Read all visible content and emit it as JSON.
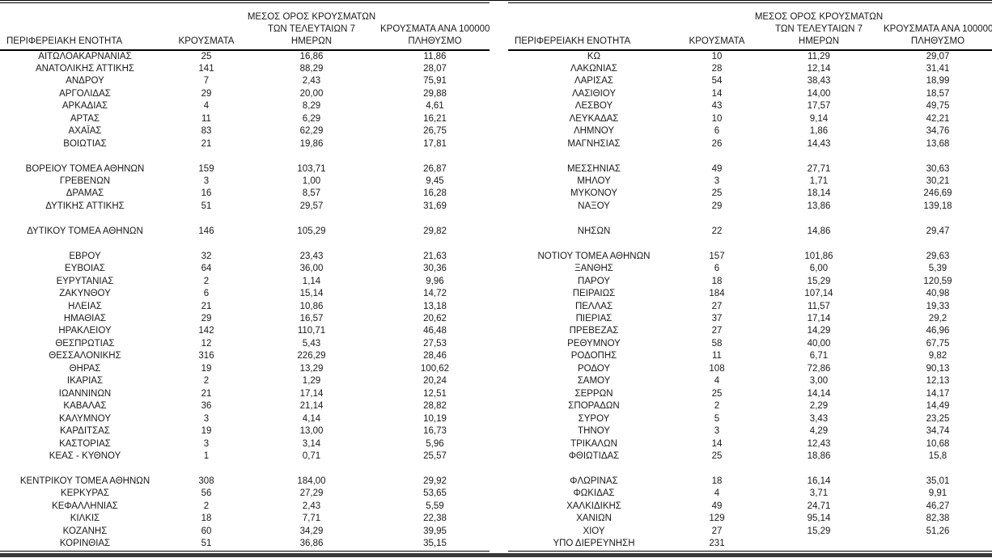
{
  "columns": {
    "region": "ΠΕΡΙΦΕΡΕΙΑΚΗ ΕΝΟΤΗΤΑ",
    "cases": "ΚΡΟΥΣΜΑΤΑ",
    "avg7": "ΜΕΣΟΣ ΟΡΟΣ ΚΡΟΥΣΜΑΤΩΝ\nΤΩΝ ΤΕΛΕΥΤΑΙΩΝ 7\nΗΜΕΡΩΝ",
    "per100k": "ΚΡΟΥΣΜΑΤΑ ΑΝΑ 100000\nΠΛΗΘΥΣΜΟ"
  },
  "colors": {
    "text": "#1a1a1a",
    "rule": "#000000",
    "bottom_bar": "#383838",
    "background": "#ffffff"
  },
  "left_table": {
    "rows": [
      [
        "ΑΙΤΩΛΟΑΚΑΡΝΑΝΙΑΣ",
        "25",
        "16,86",
        "11,86"
      ],
      [
        "ΑΝΑΤΟΛΙΚΗΣ ΑΤΤΙΚΗΣ",
        "141",
        "88,29",
        "28,07"
      ],
      [
        "ΑΝΔΡΟΥ",
        "7",
        "2,43",
        "75,91"
      ],
      [
        "ΑΡΓΟΛΙΔΑΣ",
        "29",
        "20,00",
        "29,88"
      ],
      [
        "ΑΡΚΑΔΙΑΣ",
        "4",
        "8,29",
        "4,61"
      ],
      [
        "ΑΡΤΑΣ",
        "11",
        "6,29",
        "16,21"
      ],
      [
        "ΑΧΑΪΑΣ",
        "83",
        "62,29",
        "26,75"
      ],
      [
        "ΒΟΙΩΤΙΑΣ",
        "21",
        "19,86",
        "17,81"
      ],
      null,
      [
        "ΒΟΡΕΙΟΥ ΤΟΜΕΑ ΑΘΗΝΩΝ",
        "159",
        "103,71",
        "26,87"
      ],
      [
        "ΓΡΕΒΕΝΩΝ",
        "3",
        "1,00",
        "9,45"
      ],
      [
        "ΔΡΑΜΑΣ",
        "16",
        "8,57",
        "16,28"
      ],
      [
        "ΔΥΤΙΚΗΣ ΑΤΤΙΚΗΣ",
        "51",
        "29,57",
        "31,69"
      ],
      null,
      [
        "ΔΥΤΙΚΟΥ ΤΟΜΕΑ ΑΘΗΝΩΝ",
        "146",
        "105,29",
        "29,82"
      ],
      null,
      [
        "ΕΒΡΟΥ",
        "32",
        "23,43",
        "21,63"
      ],
      [
        "ΕΥΒΟΙΑΣ",
        "64",
        "36,00",
        "30,36"
      ],
      [
        "ΕΥΡΥΤΑΝΙΑΣ",
        "2",
        "1,14",
        "9,96"
      ],
      [
        "ΖΑΚΥΝΘΟΥ",
        "6",
        "15,14",
        "14,72"
      ],
      [
        "ΗΛΕΙΑΣ",
        "21",
        "10,86",
        "13,18"
      ],
      [
        "ΗΜΑΘΙΑΣ",
        "29",
        "16,57",
        "20,62"
      ],
      [
        "ΗΡΑΚΛΕΙΟΥ",
        "142",
        "110,71",
        "46,48"
      ],
      [
        "ΘΕΣΠΡΩΤΙΑΣ",
        "12",
        "5,43",
        "27,53"
      ],
      [
        "ΘΕΣΣΑΛΟΝΙΚΗΣ",
        "316",
        "226,29",
        "28,46"
      ],
      [
        "ΘΗΡΑΣ",
        "19",
        "13,29",
        "100,62"
      ],
      [
        "ΙΚΑΡΙΑΣ",
        "2",
        "1,29",
        "20,24"
      ],
      [
        "ΙΩΑΝΝΙΝΩΝ",
        "21",
        "17,14",
        "12,51"
      ],
      [
        "ΚΑΒΑΛΑΣ",
        "36",
        "21,14",
        "28,82"
      ],
      [
        "ΚΑΛΥΜΝΟΥ",
        "3",
        "4,14",
        "10,19"
      ],
      [
        "ΚΑΡΔΙΤΣΑΣ",
        "19",
        "13,00",
        "16,73"
      ],
      [
        "ΚΑΣΤΟΡΙΑΣ",
        "3",
        "3,14",
        "5,96"
      ],
      [
        "ΚΕΑΣ - ΚΥΘΝΟΥ",
        "1",
        "0,71",
        "25,57"
      ],
      null,
      [
        "ΚΕΝΤΡΙΚΟΥ ΤΟΜΕΑ ΑΘΗΝΩΝ",
        "308",
        "184,00",
        "29,92"
      ],
      [
        "ΚΕΡΚΥΡΑΣ",
        "56",
        "27,29",
        "53,65"
      ],
      [
        "ΚΕΦΑΛΛΗΝΙΑΣ",
        "2",
        "2,43",
        "5,59"
      ],
      [
        "ΚΙΛΚΙΣ",
        "18",
        "7,71",
        "22,38"
      ],
      [
        "ΚΟΖΑΝΗΣ",
        "60",
        "34,29",
        "39,95"
      ],
      [
        "ΚΟΡΙΝΘΙΑΣ",
        "51",
        "36,86",
        "35,15"
      ]
    ]
  },
  "right_table": {
    "rows": [
      [
        "ΚΩ",
        "10",
        "11,29",
        "29,07"
      ],
      [
        "ΛΑΚΩΝΙΑΣ",
        "28",
        "12,14",
        "31,41"
      ],
      [
        "ΛΑΡΙΣΑΣ",
        "54",
        "38,43",
        "18,99"
      ],
      [
        "ΛΑΣΙΘΙΟΥ",
        "14",
        "14,00",
        "18,57"
      ],
      [
        "ΛΕΣΒΟΥ",
        "43",
        "17,57",
        "49,75"
      ],
      [
        "ΛΕΥΚΑΔΑΣ",
        "10",
        "9,14",
        "42,21"
      ],
      [
        "ΛΗΜΝΟΥ",
        "6",
        "1,86",
        "34,76"
      ],
      [
        "ΜΑΓΝΗΣΙΑΣ",
        "26",
        "14,43",
        "13,68"
      ],
      null,
      [
        "ΜΕΣΣΗΝΙΑΣ",
        "49",
        "27,71",
        "30,63"
      ],
      [
        "ΜΗΛΟΥ",
        "3",
        "1,71",
        "30,21"
      ],
      [
        "ΜΥΚΟΝΟΥ",
        "25",
        "18,14",
        "246,69"
      ],
      [
        "ΝΑΞΟΥ",
        "29",
        "13,86",
        "139,18"
      ],
      null,
      [
        "ΝΗΣΩΝ",
        "22",
        "14,86",
        "29,47"
      ],
      null,
      [
        "ΝΟΤΙΟΥ ΤΟΜΕΑ ΑΘΗΝΩΝ",
        "157",
        "101,86",
        "29,63"
      ],
      [
        "ΞΑΝΘΗΣ",
        "6",
        "6,00",
        "5,39"
      ],
      [
        "ΠΑΡΟΥ",
        "18",
        "15,29",
        "120,59"
      ],
      [
        "ΠΕΙΡΑΙΩΣ",
        "184",
        "107,14",
        "40,98"
      ],
      [
        "ΠΕΛΛΑΣ",
        "27",
        "11,57",
        "19,33"
      ],
      [
        "ΠΙΕΡΙΑΣ",
        "37",
        "17,14",
        "29,2"
      ],
      [
        "ΠΡΕΒΕΖΑΣ",
        "27",
        "14,29",
        "46,96"
      ],
      [
        "ΡΕΘΥΜΝΟΥ",
        "58",
        "40,00",
        "67,75"
      ],
      [
        "ΡΟΔΟΠΗΣ",
        "11",
        "6,71",
        "9,82"
      ],
      [
        "ΡΟΔΟΥ",
        "108",
        "72,86",
        "90,13"
      ],
      [
        "ΣΑΜΟΥ",
        "4",
        "3,00",
        "12,13"
      ],
      [
        "ΣΕΡΡΩΝ",
        "25",
        "14,14",
        "14,17"
      ],
      [
        "ΣΠΟΡΑΔΩΝ",
        "2",
        "2,29",
        "14,49"
      ],
      [
        "ΣΥΡΟΥ",
        "5",
        "3,43",
        "23,25"
      ],
      [
        "ΤΗΝΟΥ",
        "3",
        "4,29",
        "34,74"
      ],
      [
        "ΤΡΙΚΑΛΩΝ",
        "14",
        "12,43",
        "10,68"
      ],
      [
        "ΦΘΙΩΤΙΔΑΣ",
        "25",
        "18,86",
        "15,8"
      ],
      null,
      [
        "ΦΛΩΡΙΝΑΣ",
        "18",
        "16,14",
        "35,01"
      ],
      [
        "ΦΩΚΙΔΑΣ",
        "4",
        "3,71",
        "9,91"
      ],
      [
        "ΧΑΛΚΙΔΙΚΗΣ",
        "49",
        "24,71",
        "46,27"
      ],
      [
        "ΧΑΝΙΩΝ",
        "129",
        "95,14",
        "82,38"
      ],
      [
        "ΧΙΟΥ",
        "27",
        "15,29",
        "51,26"
      ],
      [
        "ΥΠΟ ΔΙΕΡΕΥΝΗΣΗ",
        "231",
        "",
        ""
      ]
    ]
  }
}
